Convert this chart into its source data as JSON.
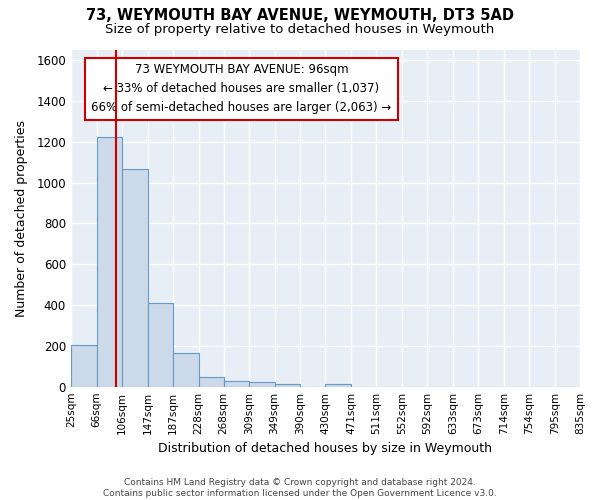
{
  "title1": "73, WEYMOUTH BAY AVENUE, WEYMOUTH, DT3 5AD",
  "title2": "Size of property relative to detached houses in Weymouth",
  "xlabel": "Distribution of detached houses by size in Weymouth",
  "ylabel": "Number of detached properties",
  "bar_edges": [
    25,
    66,
    106,
    147,
    187,
    228,
    268,
    309,
    349,
    390,
    430,
    471,
    511,
    552,
    592,
    633,
    673,
    714,
    754,
    795,
    835
  ],
  "bar_heights": [
    205,
    1225,
    1065,
    410,
    165,
    47,
    28,
    22,
    15,
    0,
    14,
    0,
    0,
    0,
    0,
    0,
    0,
    0,
    0,
    0
  ],
  "tick_labels": [
    "25sqm",
    "66sqm",
    "106sqm",
    "147sqm",
    "187sqm",
    "228sqm",
    "268sqm",
    "309sqm",
    "349sqm",
    "390sqm",
    "430sqm",
    "471sqm",
    "511sqm",
    "552sqm",
    "592sqm",
    "633sqm",
    "673sqm",
    "714sqm",
    "754sqm",
    "795sqm",
    "835sqm"
  ],
  "bar_color": "#ccd9e8",
  "bar_edge_color": "#6699cc",
  "red_line_x": 96,
  "annotation_line1": "73 WEYMOUTH BAY AVENUE: 96sqm",
  "annotation_line2": "← 33% of detached houses are smaller (1,037)",
  "annotation_line3": "66% of semi-detached houses are larger (2,063) →",
  "annotation_box_color": "#ffffff",
  "annotation_border_color": "#cc0000",
  "ylim": [
    0,
    1650
  ],
  "yticks": [
    0,
    200,
    400,
    600,
    800,
    1000,
    1200,
    1400,
    1600
  ],
  "bg_color": "#e8eef5",
  "grid_color": "#ffffff",
  "footnote": "Contains HM Land Registry data © Crown copyright and database right 2024.\nContains public sector information licensed under the Open Government Licence v3.0."
}
